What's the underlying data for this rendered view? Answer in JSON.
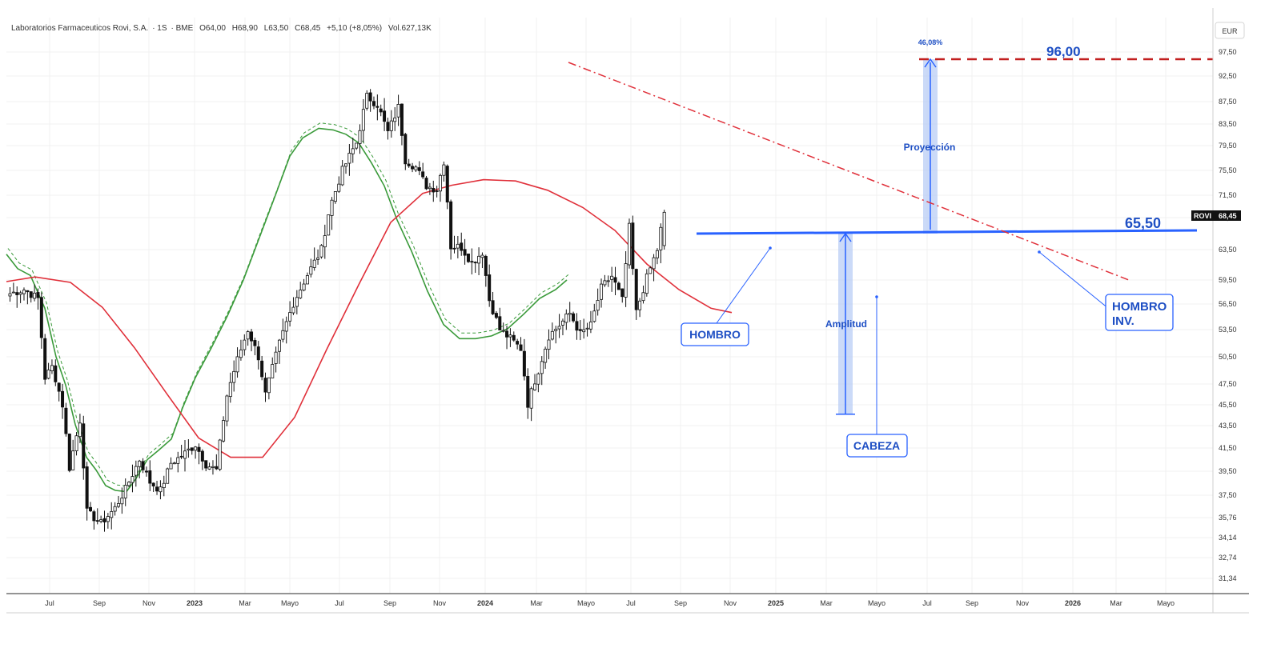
{
  "header": {
    "name": "Laboratorios Farmaceuticos Rovi, S.A.",
    "timeframe": "1S",
    "exchange": "BME",
    "open": "O64,00",
    "high": "H68,90",
    "low": "L63,50",
    "close": "C68,45",
    "change": "+5,10 (+8,05%)",
    "volume": "Vol.627,13K"
  },
  "currency": "EUR",
  "price_tag": {
    "symbol": "ROVI",
    "value": "68,45"
  },
  "colors": {
    "background": "#ffffff",
    "grid": "#f0f0f0",
    "candle": "#111111",
    "sma_green": "#3a9a3a",
    "sma_red": "#e0303a",
    "neckline": "#2962ff",
    "trendline": "#e0303a",
    "target": "#c21f1f",
    "projection_fill": "#b9cdf5",
    "annotation": "#1e4fc4"
  },
  "annotations": {
    "target_label": "96,00",
    "neckline_label": "65,50",
    "percent_label": "46,08%",
    "projection_label": "Proyección",
    "amplitude_label": "Amplitud",
    "shoulder_label": "HOMBRO",
    "head_label": "CABEZA",
    "inv_shoulder_line1": "HOMBRO",
    "inv_shoulder_line2": "INV."
  },
  "chart_data": {
    "type": "candlestick",
    "title": "Laboratorios Farmaceuticos Rovi, S.A. · 1S · BME",
    "y_ticks": [
      "97,50",
      "92,50",
      "87,50",
      "83,50",
      "79,50",
      "75,50",
      "71,50",
      "67,50",
      "63,50",
      "59,50",
      "56,50",
      "53,50",
      "50,50",
      "47,50",
      "45,50",
      "43,50",
      "41,50",
      "39,50",
      "37,50",
      "35,76",
      "34,14",
      "32,74",
      "31,34"
    ],
    "x_ticks": [
      "Jul",
      "Sep",
      "Nov",
      "2023",
      "Mar",
      "Mayo",
      "Jul",
      "Sep",
      "Nov",
      "2024",
      "Mar",
      "Mayo",
      "Jul",
      "Sep",
      "Nov",
      "2025",
      "Mar",
      "Mayo",
      "Jul",
      "Sep",
      "Nov",
      "2026",
      "Mar",
      "Mayo"
    ],
    "price_path": [
      [
        "2022-06-06",
        57.8
      ],
      [
        "2022-07-04",
        58.3
      ],
      [
        "2022-08-01",
        57.2
      ],
      [
        "2022-08-15",
        48.2
      ],
      [
        "2022-08-29",
        49.4
      ],
      [
        "2022-09-19",
        45.5
      ],
      [
        "2022-10-03",
        39.8
      ],
      [
        "2022-10-24",
        44.0
      ],
      [
        "2022-11-07",
        36.2
      ],
      [
        "2022-12-05",
        35.3
      ],
      [
        "2023-01-02",
        36.5
      ],
      [
        "2023-01-23",
        38.0
      ],
      [
        "2023-02-20",
        40.5
      ],
      [
        "2023-03-13",
        38.6
      ],
      [
        "2023-04-03",
        37.9
      ],
      [
        "2023-04-24",
        40.2
      ],
      [
        "2023-05-15",
        40.8
      ],
      [
        "2023-06-12",
        41.8
      ],
      [
        "2023-07-03",
        40.1
      ],
      [
        "2023-07-24",
        39.6
      ],
      [
        "2023-08-14",
        46.4
      ],
      [
        "2023-09-04",
        50.2
      ],
      [
        "2023-09-25",
        53.5
      ],
      [
        "2023-10-16",
        50.5
      ],
      [
        "2023-10-30",
        46.5
      ],
      [
        "2023-11-27",
        52.0
      ],
      [
        "2023-12-25",
        56.6
      ],
      [
        "2024-01-22",
        60.2
      ],
      [
        "2024-02-19",
        63.5
      ],
      [
        "2024-03-11",
        70.5
      ],
      [
        "2024-04-01",
        75.5
      ],
      [
        "2024-04-29",
        80.0
      ],
      [
        "2024-05-20",
        88.5
      ],
      [
        "2024-06-10",
        87.0
      ],
      [
        "2024-07-01",
        82.0
      ],
      [
        "2024-07-22",
        86.5
      ],
      [
        "2024-08-05",
        77.2
      ],
      [
        "2024-08-26",
        76.0
      ],
      [
        "2024-09-16",
        73.0
      ],
      [
        "2024-10-07",
        72.4
      ],
      [
        "2024-10-21",
        77.0
      ],
      [
        "2024-11-04",
        63.9
      ],
      [
        "2024-11-25",
        63.8
      ],
      [
        "2024-12-16",
        61.8
      ],
      [
        "2025-01-06",
        63.2
      ],
      [
        "2025-01-20",
        57.0
      ],
      [
        "2025-02-10",
        53.5
      ],
      [
        "2025-03-03",
        52.5
      ],
      [
        "2025-03-24",
        51.4
      ],
      [
        "2025-04-07",
        45.6
      ],
      [
        "2025-04-28",
        49.0
      ],
      [
        "2025-05-19",
        52.8
      ],
      [
        "2025-06-09",
        54.0
      ],
      [
        "2025-06-30",
        55.4
      ],
      [
        "2025-07-21",
        53.0
      ],
      [
        "2025-08-11",
        54.0
      ],
      [
        "2025-09-01",
        58.5
      ],
      [
        "2025-09-22",
        60.0
      ],
      [
        "2025-10-13",
        57.0
      ],
      [
        "2025-10-27",
        66.2
      ],
      [
        "2025-11-10",
        55.5
      ],
      [
        "2025-12-01",
        59.8
      ],
      [
        "2025-12-22",
        63.5
      ],
      [
        "2026-01-05",
        68.45
      ]
    ],
    "series": [
      {
        "name": "SMA (verde)",
        "values": [
          [
            0,
            62.9
          ],
          [
            14,
            61.0
          ],
          [
            30,
            60.1
          ],
          [
            48,
            56.0
          ],
          [
            62,
            50.5
          ],
          [
            74,
            47.4
          ],
          [
            86,
            43.6
          ],
          [
            100,
            40.7
          ],
          [
            112,
            39.6
          ],
          [
            124,
            38.3
          ],
          [
            136,
            37.9
          ],
          [
            150,
            37.8
          ],
          [
            162,
            38.9
          ],
          [
            176,
            40.5
          ],
          [
            190,
            41.3
          ],
          [
            206,
            42.3
          ],
          [
            220,
            45.2
          ],
          [
            236,
            48.2
          ],
          [
            256,
            51.5
          ],
          [
            276,
            55.1
          ],
          [
            296,
            59.5
          ],
          [
            316,
            65.0
          ],
          [
            336,
            71.5
          ],
          [
            354,
            77.8
          ],
          [
            370,
            80.9
          ],
          [
            390,
            82.7
          ],
          [
            408,
            82.4
          ],
          [
            424,
            81.6
          ],
          [
            440,
            80.0
          ],
          [
            456,
            76.7
          ],
          [
            472,
            73.0
          ],
          [
            488,
            67.2
          ],
          [
            506,
            63.3
          ],
          [
            526,
            58.1
          ],
          [
            546,
            54.1
          ],
          [
            566,
            52.5
          ],
          [
            586,
            52.5
          ],
          [
            606,
            52.8
          ],
          [
            626,
            53.6
          ],
          [
            646,
            55.3
          ],
          [
            666,
            57.2
          ],
          [
            686,
            58.3
          ],
          [
            700,
            59.5
          ]
        ]
      },
      {
        "name": "SMA (rojo)",
        "values": [
          [
            0,
            59.3
          ],
          [
            36,
            59.9
          ],
          [
            80,
            59.2
          ],
          [
            120,
            56.1
          ],
          [
            160,
            51.5
          ],
          [
            200,
            46.6
          ],
          [
            240,
            42.4
          ],
          [
            280,
            40.7
          ],
          [
            320,
            40.7
          ],
          [
            360,
            44.3
          ],
          [
            400,
            51.3
          ],
          [
            440,
            58.9
          ],
          [
            480,
            66.9
          ],
          [
            520,
            71.8
          ],
          [
            556,
            73.1
          ],
          [
            596,
            74.0
          ],
          [
            636,
            73.8
          ],
          [
            676,
            72.3
          ],
          [
            720,
            69.3
          ],
          [
            760,
            65.9
          ],
          [
            800,
            61.6
          ],
          [
            840,
            58.3
          ],
          [
            880,
            56.0
          ],
          [
            906,
            55.5
          ]
        ]
      }
    ],
    "neckline": 65.5,
    "target": 96.0,
    "projection_percent": 46.08,
    "y_axis_unit": "EUR",
    "grid": true,
    "legend": "none"
  }
}
